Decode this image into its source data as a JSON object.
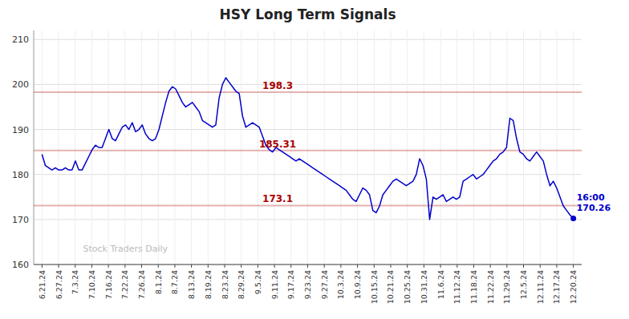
{
  "chart_data": {
    "type": "line",
    "title": "HSY Long Term Signals",
    "series": [
      {
        "name": "HSY",
        "color": "#0000cc",
        "values": [
          184.5,
          182.0,
          181.5,
          181.0,
          181.5,
          181.0,
          181.0,
          181.5,
          181.0,
          181.0,
          183.0,
          181.0,
          181.0,
          182.5,
          184.0,
          185.5,
          186.5,
          186.0,
          186.0,
          188.0,
          190.0,
          188.0,
          187.5,
          189.0,
          190.5,
          191.0,
          190.0,
          191.5,
          189.5,
          190.0,
          191.0,
          189.0,
          188.0,
          187.5,
          188.0,
          190.0,
          193.0,
          196.0,
          198.5,
          199.5,
          199.0,
          197.5,
          196.0,
          195.0,
          195.5,
          196.0,
          195.0,
          194.0,
          192.0,
          191.5,
          191.0,
          190.5,
          191.0,
          197.0,
          200.0,
          201.5,
          200.5,
          199.5,
          198.5,
          198.0,
          193.0,
          190.5,
          191.0,
          191.5,
          191.0,
          190.5,
          188.5,
          186.5,
          185.5,
          185.0,
          186.0,
          185.5,
          185.0,
          184.5,
          184.0,
          183.5,
          183.0,
          183.5,
          183.0,
          182.5,
          182.0,
          181.5,
          181.0,
          180.5,
          180.0,
          179.5,
          179.0,
          178.5,
          178.0,
          177.5,
          177.0,
          176.5,
          175.5,
          174.5,
          174.0,
          175.5,
          177.0,
          176.5,
          175.5,
          172.0,
          171.5,
          173.0,
          175.5,
          176.5,
          177.5,
          178.5,
          179.0,
          178.5,
          178.0,
          177.5,
          178.0,
          178.5,
          180.0,
          183.5,
          182.0,
          179.0,
          170.0,
          175.0,
          174.5,
          175.0,
          175.5,
          174.0,
          174.5,
          175.0,
          174.5,
          175.0,
          178.5,
          179.0,
          179.5,
          180.0,
          179.0,
          179.5,
          180.0,
          181.0,
          182.0,
          183.0,
          183.5,
          184.5,
          185.0,
          186.0,
          192.5,
          192.0,
          188.0,
          185.0,
          184.5,
          183.5,
          183.0,
          184.0,
          185.0,
          184.0,
          183.0,
          180.0,
          177.5,
          178.5,
          177.0,
          175.0,
          173.0,
          172.0,
          171.0,
          170.26
        ]
      }
    ],
    "xlim": [
      -0.5,
      32.5
    ],
    "xticks": [
      {
        "value": 0,
        "label": "6.21.24"
      },
      {
        "value": 1,
        "label": "6.27.24"
      },
      {
        "value": 2,
        "label": "7.3.24"
      },
      {
        "value": 3,
        "label": "7.10.24"
      },
      {
        "value": 4,
        "label": "7.16.24"
      },
      {
        "value": 5,
        "label": "7.22.24"
      },
      {
        "value": 6,
        "label": "7.26.24"
      },
      {
        "value": 7,
        "label": "8.1.24"
      },
      {
        "value": 8,
        "label": "8.7.24"
      },
      {
        "value": 9,
        "label": "8.13.24"
      },
      {
        "value": 10,
        "label": "8.19.24"
      },
      {
        "value": 11,
        "label": "8.23.24"
      },
      {
        "value": 12,
        "label": "8.29.24"
      },
      {
        "value": 13,
        "label": "9.5.24"
      },
      {
        "value": 14,
        "label": "9.11.24"
      },
      {
        "value": 15,
        "label": "9.17.24"
      },
      {
        "value": 16,
        "label": "9.23.24"
      },
      {
        "value": 17,
        "label": "9.27.24"
      },
      {
        "value": 18,
        "label": "10.3.24"
      },
      {
        "value": 19,
        "label": "10.9.24"
      },
      {
        "value": 20,
        "label": "10.15.24"
      },
      {
        "value": 21,
        "label": "10.21.24"
      },
      {
        "value": 22,
        "label": "10.25.24"
      },
      {
        "value": 23,
        "label": "10.31.24"
      },
      {
        "value": 24,
        "label": "11.6.24"
      },
      {
        "value": 25,
        "label": "11.12.24"
      },
      {
        "value": 26,
        "label": "11.18.24"
      },
      {
        "value": 27,
        "label": "11.22.24"
      },
      {
        "value": 28,
        "label": "11.29.24"
      },
      {
        "value": 29,
        "label": "12.5.24"
      },
      {
        "value": 30,
        "label": "12.11.24"
      },
      {
        "value": 31,
        "label": "12.17.24"
      },
      {
        "value": 32,
        "label": "12.20.24"
      }
    ],
    "ylim": [
      160,
      212
    ],
    "yticks": [
      160,
      170,
      180,
      190,
      200,
      210
    ],
    "grid": true,
    "hlines": [
      {
        "value": 198.3,
        "color": "#aa0000"
      },
      {
        "value": 185.31,
        "color": "#aa0000"
      },
      {
        "value": 173.1,
        "color": "#aa0000"
      }
    ],
    "annotations": [
      {
        "text": "16:00",
        "value": 170.26
      },
      {
        "text": "Stock Traders Daily"
      }
    ]
  }
}
